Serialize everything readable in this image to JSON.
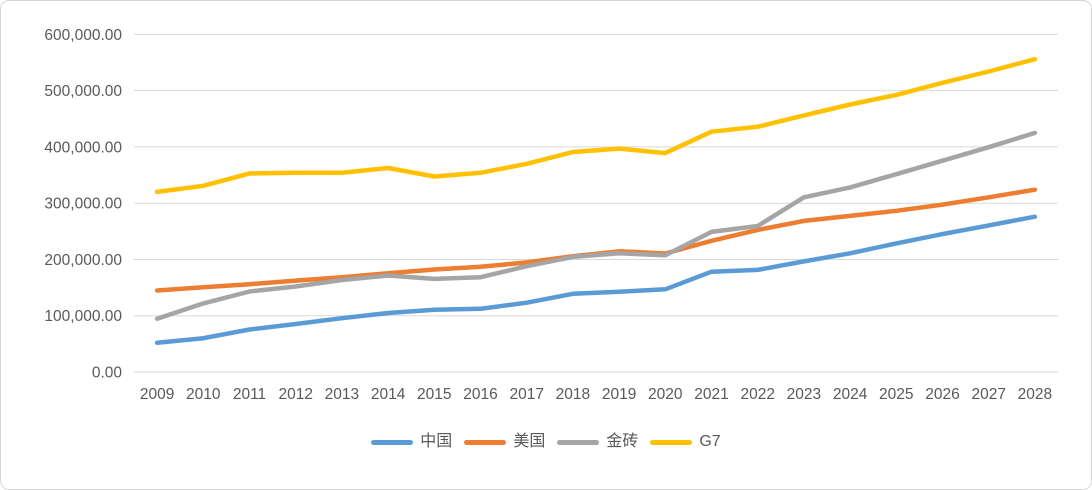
{
  "chart_data": {
    "type": "line",
    "title": "",
    "xlabel": "",
    "ylabel": "",
    "x": [
      "2009",
      "2010",
      "2011",
      "2012",
      "2013",
      "2014",
      "2015",
      "2016",
      "2017",
      "2018",
      "2019",
      "2020",
      "2021",
      "2022",
      "2023",
      "2024",
      "2025",
      "2026",
      "2027",
      "2028"
    ],
    "series": [
      {
        "key": "china",
        "name": "中国",
        "color": "#5B9BD5",
        "values": [
          52000,
          60000,
          75500,
          85300,
          95700,
          104800,
          110500,
          112300,
          123100,
          138900,
          142800,
          146900,
          178200,
          181500,
          196500,
          211000,
          228500,
          245000,
          260500,
          276000
        ]
      },
      {
        "key": "usa",
        "name": "美国",
        "color": "#ED7D31",
        "values": [
          144800,
          150500,
          156000,
          162500,
          168400,
          175500,
          182100,
          187000,
          194800,
          205800,
          214500,
          210600,
          233200,
          252500,
          268500,
          277500,
          286500,
          297500,
          310500,
          324000
        ]
      },
      {
        "key": "brics",
        "name": "金砖",
        "color": "#A5A5A5",
        "values": [
          94500,
          122000,
          143000,
          152000,
          163500,
          171500,
          165500,
          168500,
          188000,
          204500,
          211000,
          207500,
          249000,
          259500,
          310500,
          328000,
          351500,
          375500,
          399500,
          425000
        ]
      },
      {
        "key": "g7",
        "name": "G7",
        "color": "#FFC000",
        "values": [
          320000,
          331000,
          353000,
          354000,
          354000,
          362500,
          347500,
          354000,
          370000,
          391000,
          397000,
          389000,
          427000,
          436000,
          456000,
          475500,
          492500,
          514000,
          534000,
          556000
        ]
      }
    ],
    "ylim": [
      0,
      600000
    ],
    "y_tick_step": 100000,
    "y_tick_labels": [
      "0.00",
      "100,000.00",
      "200,000.00",
      "300,000.00",
      "400,000.00",
      "500,000.00",
      "600,000.00"
    ],
    "grid": "horizontal",
    "gridline_color": "#D9D9D9",
    "axis_text_color": "#595959",
    "legend_position": "bottom"
  }
}
